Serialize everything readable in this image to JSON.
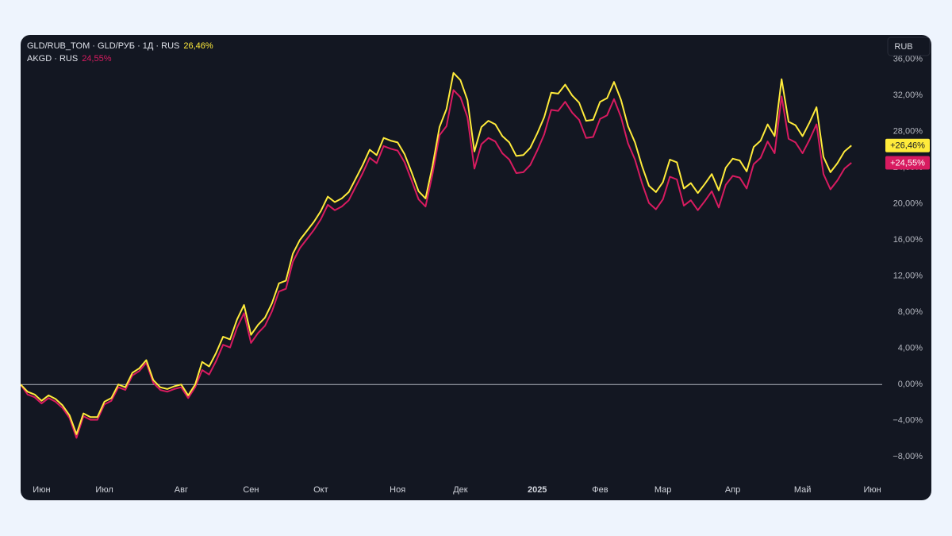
{
  "chart_data": {
    "type": "line",
    "currency": "RUB",
    "categories": [
      null,
      null,
      null,
      "Июн",
      null,
      null,
      null,
      null,
      null,
      null,
      null,
      null,
      "Июл",
      null,
      null,
      null,
      null,
      null,
      null,
      null,
      null,
      null,
      null,
      "Авг",
      null,
      null,
      null,
      null,
      null,
      null,
      null,
      null,
      null,
      "Сен",
      null,
      null,
      null,
      null,
      null,
      null,
      null,
      null,
      null,
      "Окт",
      null,
      null,
      null,
      null,
      null,
      null,
      null,
      null,
      null,
      null,
      "Ноя",
      null,
      null,
      null,
      null,
      null,
      null,
      null,
      null,
      "Дек",
      null,
      null,
      null,
      null,
      null,
      null,
      null,
      null,
      null,
      null,
      "2025",
      null,
      null,
      null,
      null,
      null,
      null,
      null,
      null,
      "Фев",
      null,
      null,
      null,
      null,
      null,
      null,
      null,
      null,
      "Мар",
      null,
      null,
      null,
      null,
      null,
      null,
      null,
      null,
      null,
      "Апр",
      null,
      null,
      null,
      null,
      null,
      null,
      null,
      null,
      null,
      "Май",
      null,
      null,
      null,
      null,
      null,
      null,
      null,
      null,
      null,
      "Июн"
    ],
    "series": [
      {
        "name": "GLD/RUB_TOM · GLD/РУБ · 1Д · RUS",
        "legend_value": "26,46%",
        "price_label": "+26,46%",
        "color": "#ffeb3b",
        "values": [
          0,
          -0.8,
          -1.1,
          -1.8,
          -1.2,
          -1.6,
          -2.3,
          -3.4,
          -5.5,
          -3.2,
          -3.6,
          -3.6,
          -1.9,
          -1.5,
          0,
          -0.3,
          1.3,
          1.8,
          2.7,
          0.5,
          -0.3,
          -0.5,
          -0.2,
          0,
          -1.2,
          0,
          2.5,
          2,
          3.5,
          5.3,
          5,
          7.2,
          8.8,
          5.5,
          6.6,
          7.4,
          9,
          11.2,
          11.5,
          14.5,
          16,
          17,
          18,
          19.2,
          20.8,
          20.2,
          20.6,
          21.3,
          22.8,
          24.3,
          26,
          25.4,
          27.3,
          27,
          26.8,
          25.5,
          23.5,
          21.4,
          20.6,
          24.2,
          28.5,
          30.5,
          34.5,
          33.7,
          31.5,
          25.8,
          28.5,
          29.2,
          28.8,
          27.5,
          26.8,
          25.3,
          25.4,
          26.2,
          27.8,
          29.6,
          32.3,
          32.2,
          33.2,
          32,
          31.2,
          29.2,
          29.3,
          31.3,
          31.7,
          33.5,
          31.5,
          28.6,
          26.8,
          24.2,
          22,
          21.3,
          22.4,
          24.9,
          24.6,
          21.7,
          22.3,
          21.2,
          22.2,
          23.3,
          21.5,
          24,
          25,
          24.8,
          23.6,
          26.3,
          27,
          28.8,
          27.5,
          33.8,
          29.1,
          28.7,
          27.5,
          29,
          30.7,
          25.2,
          23.5,
          24.5,
          25.8,
          26.46,
          null,
          null,
          null
        ]
      },
      {
        "name": "AKGD · RUS",
        "legend_value": "24,55%",
        "price_label": "+24,55%",
        "color": "#d81b60",
        "values": [
          0,
          -1.1,
          -1.4,
          -2.1,
          -1.5,
          -1.9,
          -2.6,
          -3.7,
          -5.9,
          -3.5,
          -3.9,
          -3.9,
          -2.2,
          -1.8,
          -0.3,
          -0.6,
          1.0,
          1.5,
          2.4,
          0.2,
          -0.6,
          -0.8,
          -0.5,
          -0.3,
          -1.5,
          -0.3,
          1.6,
          1.1,
          2.6,
          4.4,
          4.1,
          6.3,
          7.9,
          4.6,
          5.7,
          6.5,
          8.1,
          10.3,
          10.6,
          13.6,
          15.1,
          16.1,
          17.1,
          18.3,
          19.9,
          19.3,
          19.7,
          20.4,
          21.9,
          23.4,
          25.1,
          24.5,
          26.4,
          26.1,
          25.9,
          24.6,
          22.6,
          20.5,
          19.7,
          23.3,
          27.6,
          28.6,
          32.6,
          31.8,
          29.6,
          23.9,
          26.6,
          27.3,
          26.9,
          25.6,
          24.9,
          23.4,
          23.5,
          24.3,
          25.9,
          27.7,
          30.4,
          30.3,
          31.3,
          30.1,
          29.3,
          27.3,
          27.4,
          29.4,
          29.8,
          31.6,
          29.6,
          26.7,
          24.9,
          22.3,
          20.1,
          19.4,
          20.5,
          23.0,
          22.7,
          19.8,
          20.4,
          19.3,
          20.3,
          21.4,
          19.6,
          22.1,
          23.1,
          22.9,
          21.7,
          24.4,
          25.1,
          26.9,
          25.6,
          31.9,
          27.2,
          26.8,
          25.6,
          27.1,
          28.8,
          23.3,
          21.6,
          22.6,
          23.9,
          24.55,
          null,
          null,
          null
        ]
      }
    ],
    "ylim": [
      -10,
      38.7
    ],
    "yticks": [
      {
        "value": -8,
        "label": "−8,00%"
      },
      {
        "value": -4,
        "label": "−4,00%"
      },
      {
        "value": 0,
        "label": "0,00%"
      },
      {
        "value": 4,
        "label": "4,00%"
      },
      {
        "value": 8,
        "label": "8,00%"
      },
      {
        "value": 12,
        "label": "12,00%"
      },
      {
        "value": 16,
        "label": "16,00%"
      },
      {
        "value": 20,
        "label": "20,00%"
      },
      {
        "value": 24,
        "label": "24,00%"
      },
      {
        "value": 28,
        "label": "28,00%"
      },
      {
        "value": 32,
        "label": "32,00%"
      },
      {
        "value": 36,
        "label": "36,00%"
      }
    ],
    "baseline": 0,
    "grid": false
  }
}
